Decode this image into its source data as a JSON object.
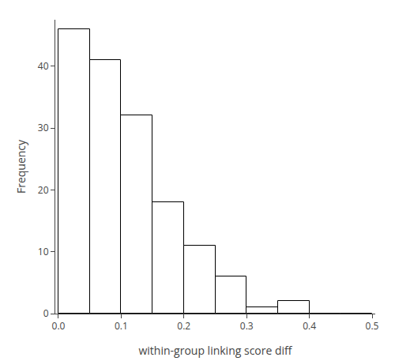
{
  "chart_data": {
    "type": "histogram",
    "bins": [
      0.0,
      0.05,
      0.1,
      0.15,
      0.2,
      0.25,
      0.3,
      0.35,
      0.4,
      0.45,
      0.5
    ],
    "values": [
      46,
      41,
      32,
      18,
      11,
      6,
      1,
      2,
      0,
      0
    ],
    "xlabel": "within-group linking score diff",
    "ylabel": "Frequency",
    "xlim": [
      -0.005,
      0.505
    ],
    "ylim": [
      0,
      47.5
    ],
    "xticks": [
      {
        "value": 0.0,
        "label": "0.0"
      },
      0.1,
      0.2,
      0.3,
      0.4,
      0.5
    ],
    "yticks": [
      0,
      10,
      20,
      30,
      40
    ],
    "color": "#ffffff",
    "grid": false
  }
}
